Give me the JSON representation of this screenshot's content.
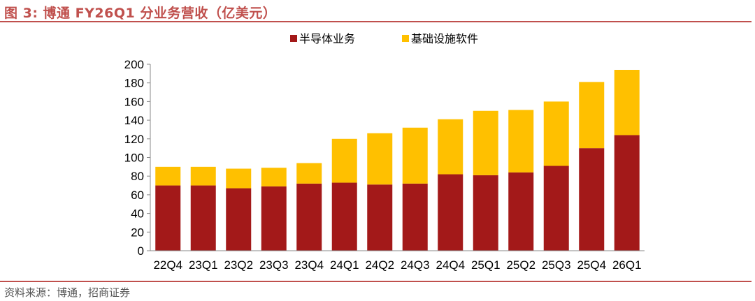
{
  "figure": {
    "title": "图 3: 博通 FY26Q1 分业务营收（亿美元）",
    "source": "资料来源：博通，招商证券"
  },
  "colors": {
    "semiconductor": "#a31919",
    "software": "#ffc000",
    "accent": "#c0504d"
  },
  "chart_data": {
    "type": "bar",
    "stacked": true,
    "title": "博通 FY26Q1 分业务营收（亿美元）",
    "xlabel": "",
    "ylabel": "",
    "ylim": [
      0,
      200
    ],
    "yticks": [
      0,
      20,
      40,
      60,
      80,
      100,
      120,
      140,
      160,
      180,
      200
    ],
    "grid": false,
    "legend_position": "top",
    "categories": [
      "22Q4",
      "23Q1",
      "23Q2",
      "23Q3",
      "23Q4",
      "24Q1",
      "24Q2",
      "24Q3",
      "24Q4",
      "25Q1",
      "25Q2",
      "25Q3",
      "25Q4",
      "26Q1"
    ],
    "series": [
      {
        "name": "半导体业务",
        "color": "#a31919",
        "values": [
          70,
          70,
          67,
          69,
          72,
          73,
          71,
          72,
          82,
          81,
          84,
          91,
          110,
          124
        ]
      },
      {
        "name": "基础设施软件",
        "color": "#ffc000",
        "values": [
          20,
          20,
          21,
          20,
          22,
          47,
          55,
          60,
          59,
          69,
          67,
          69,
          71,
          70
        ]
      }
    ]
  }
}
